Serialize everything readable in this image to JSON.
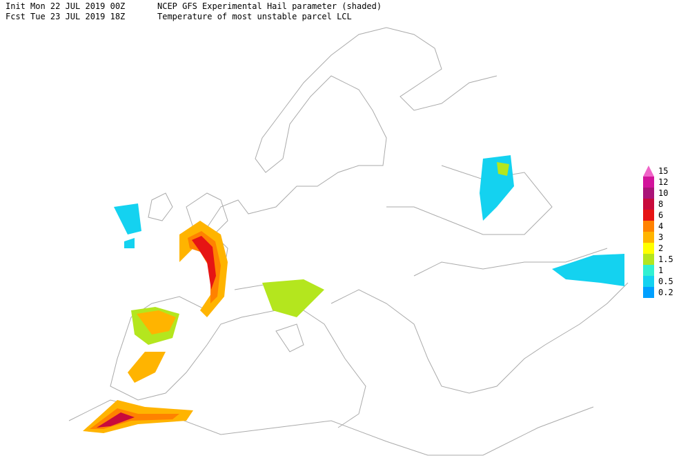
{
  "header": {
    "line1": {
      "label": "Init",
      "time": "Mon 22 JUL 2019 00Z",
      "field": "NCEP GFS Experimental Hail parameter (shaded)"
    },
    "line2": {
      "label": "Fcst",
      "time": "Tue 23 JUL 2019 18Z",
      "field": "Temperature of most unstable parcel LCL"
    }
  },
  "legend": {
    "items": [
      {
        "value": 15,
        "color": "#f064c8"
      },
      {
        "value": 12,
        "color": "#d2149b"
      },
      {
        "value": 10,
        "color": "#aa1478"
      },
      {
        "value": 8,
        "color": "#c80a3c"
      },
      {
        "value": 6,
        "color": "#e61414"
      },
      {
        "value": 4,
        "color": "#ff8200"
      },
      {
        "value": 3,
        "color": "#ffb400"
      },
      {
        "value": 2,
        "color": "#ffff00"
      },
      {
        "value": 1.5,
        "color": "#b4e61e"
      },
      {
        "value": 1,
        "color": "#32f0d2"
      },
      {
        "value": 0.5,
        "color": "#14d2f0"
      },
      {
        "value": 0.2,
        "color": "#00a0ff"
      }
    ]
  }
}
